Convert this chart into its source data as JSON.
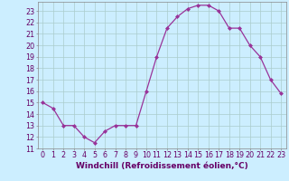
{
  "x": [
    0,
    1,
    2,
    3,
    4,
    5,
    6,
    7,
    8,
    9,
    10,
    11,
    12,
    13,
    14,
    15,
    16,
    17,
    18,
    19,
    20,
    21,
    22,
    23
  ],
  "y_vals": [
    15,
    14.5,
    13,
    13,
    12,
    11.5,
    12.5,
    13,
    13,
    13,
    16,
    19,
    21.5,
    22.5,
    23.2,
    23.5,
    23.5,
    23,
    21.5,
    21.5,
    20,
    19,
    17,
    15.8
  ],
  "line_color": "#993399",
  "marker": "D",
  "marker_size": 2.0,
  "bg_color": "#cceeff",
  "plot_bg": "#cceeff",
  "grid_color": "#aacccc",
  "xlabel": "Windchill (Refroidissement éolien,°C)",
  "xlabel_fontsize": 6.5,
  "xlim": [
    -0.5,
    23.5
  ],
  "ylim": [
    11,
    23.8
  ],
  "yticks": [
    11,
    12,
    13,
    14,
    15,
    16,
    17,
    18,
    19,
    20,
    21,
    22,
    23
  ],
  "xticks": [
    0,
    1,
    2,
    3,
    4,
    5,
    6,
    7,
    8,
    9,
    10,
    11,
    12,
    13,
    14,
    15,
    16,
    17,
    18,
    19,
    20,
    21,
    22,
    23
  ],
  "tick_fontsize": 5.8,
  "line_width": 0.9,
  "spine_color": "#888888",
  "label_color": "#660066"
}
